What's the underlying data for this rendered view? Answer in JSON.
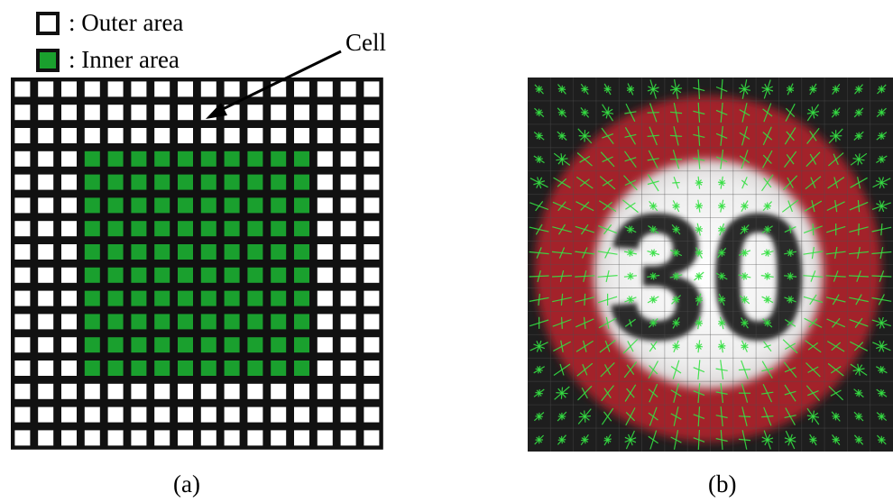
{
  "legend": [
    {
      "label": ": Outer area",
      "color": "#ffffff"
    },
    {
      "label": ": Inner area",
      "color": "#1aa02e"
    }
  ],
  "callout": {
    "label": "Cell"
  },
  "grid": {
    "rows": 16,
    "cols": 16,
    "inner_rows": [
      3,
      12
    ],
    "inner_cols": [
      3,
      12
    ],
    "outer_color": "#ffffff",
    "inner_color": "#1aa02e",
    "line_color": "#111111"
  },
  "sign": {
    "digits": "30",
    "ring_color": "#a3242a",
    "background_color": "#1e1e1e",
    "vector_color": "#35e043"
  },
  "captions": {
    "a": "(a)",
    "b": "(b)"
  }
}
